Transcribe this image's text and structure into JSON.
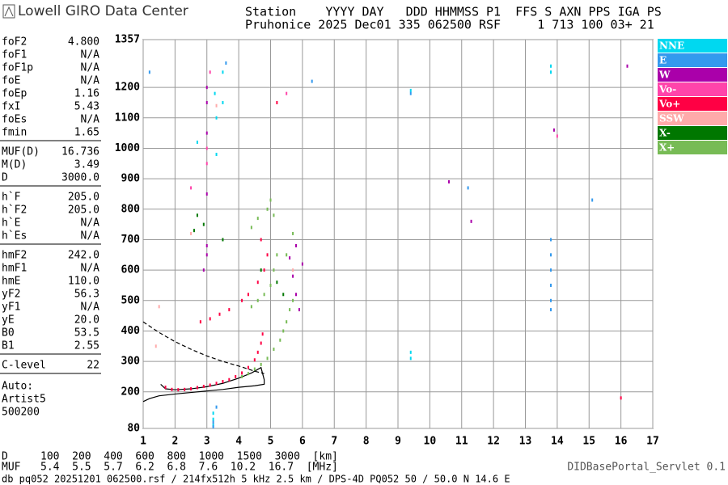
{
  "header": {
    "brand": "Lowell GIRO Data Center",
    "line1": "Station    YYYY DAY   DDD HHMMSS P1  FFS S AXN PPS IGA PS",
    "line2": "Pruhonice 2025 Dec01 335 062500 RSF     1 713 100 03+ 21"
  },
  "panel": [
    [
      [
        "foF2",
        "4.800"
      ],
      [
        "foF1",
        "N/A"
      ],
      [
        "foF1p",
        "N/A"
      ],
      [
        "foE",
        "N/A"
      ],
      [
        "foEp",
        "1.16"
      ],
      [
        "fxI",
        "5.43"
      ],
      [
        "foEs",
        "N/A"
      ],
      [
        "fmin",
        "1.65"
      ]
    ],
    [
      [
        "MUF(D)",
        "16.736"
      ],
      [
        "M(D)",
        "3.49"
      ],
      [
        "D",
        "3000.0"
      ]
    ],
    [
      [
        "h`F",
        "205.0"
      ],
      [
        "h`F2",
        "205.0"
      ],
      [
        "h`E",
        "N/A"
      ],
      [
        "h`Es",
        "N/A"
      ]
    ],
    [
      [
        "hmF2",
        "242.0"
      ],
      [
        "hmF1",
        "N/A"
      ],
      [
        "hmE",
        "110.0"
      ],
      [
        "yF2",
        "56.3"
      ],
      [
        "yF1",
        "N/A"
      ],
      [
        "yE",
        "20.0"
      ],
      [
        "B0",
        "53.5"
      ],
      [
        "B1",
        "2.55"
      ]
    ],
    [
      [
        "C-level",
        "22"
      ]
    ]
  ],
  "auto": [
    "Auto:",
    "Artist5",
    "500200"
  ],
  "footer": {
    "d_label": "D",
    "d_values": "100  200  400  600  800  1000  1500  3000  [km]",
    "muf_label": "MUF",
    "muf_values": "5.4  5.5  5.7  6.2  6.8  7.6  10.2  16.7  [MHz]",
    "source": "db pq052 20251201 062500.rsf / 214fx512h 5 kHz 2.5 km / DPS-4D PQ052 50 / 50.0 N 14.6 E",
    "servlet": "DIDBasePortal_Servlet 0.1"
  },
  "chart_data": {
    "type": "scatter",
    "xlim": [
      1,
      17
    ],
    "xticks": [
      1,
      2,
      3,
      4,
      5,
      6,
      7,
      8,
      9,
      10,
      11,
      12,
      13,
      14,
      15,
      16,
      17
    ],
    "ylim": [
      80,
      1357
    ],
    "yticks": [
      80,
      200,
      300,
      400,
      500,
      600,
      700,
      800,
      900,
      1000,
      1100,
      1200,
      1357
    ],
    "grid": true,
    "legend": "right",
    "series": [
      {
        "name": "NNE",
        "color": "#00d8f0",
        "x": [
          3.25,
          3.3,
          3.3,
          3.5,
          3.5,
          3.2,
          3.2,
          3.2,
          13.8,
          13.8,
          9.4,
          9.4,
          9.4,
          2.7
        ],
        "y": [
          1180,
          1100,
          980,
          1250,
          1150,
          90,
          110,
          130,
          1270,
          1250,
          1190,
          330,
          310,
          1020
        ]
      },
      {
        "name": "E",
        "color": "#3399ee",
        "x": [
          3.2,
          3.2,
          3.3,
          13.8,
          13.8,
          13.8,
          13.8,
          13.8,
          13.8,
          15.1,
          6.3,
          3.6,
          1.2,
          9.4,
          11.2
        ],
        "y": [
          85,
          100,
          150,
          700,
          650,
          600,
          550,
          500,
          470,
          830,
          1220,
          1280,
          1250,
          1180,
          870
        ]
      },
      {
        "name": "W",
        "color": "#aa00aa",
        "x": [
          3,
          3,
          3,
          3,
          3,
          3,
          2.9,
          10.6,
          11.3,
          13.9,
          16.2,
          5.6,
          5.7,
          5.8,
          5.9,
          6,
          5.8
        ],
        "y": [
          1200,
          1150,
          1050,
          850,
          680,
          650,
          600,
          890,
          760,
          1060,
          1270,
          640,
          580,
          520,
          470,
          620,
          680
        ]
      },
      {
        "name": "Vo-",
        "color": "#ff44aa",
        "x": [
          3,
          3,
          5.5,
          3.1,
          14,
          2.5
        ],
        "y": [
          1000,
          950,
          1180,
          1250,
          1040,
          870
        ]
      },
      {
        "name": "Vo+",
        "color": "#ff0044",
        "x": [
          1.7,
          1.9,
          2.1,
          2.3,
          2.5,
          2.7,
          2.9,
          3.1,
          3.3,
          3.5,
          3.7,
          3.9,
          4.1,
          4.3,
          4.5,
          4.6,
          4.7,
          4.75,
          2.8,
          3.1,
          3.4,
          3.7,
          4.1,
          4.3,
          4.6,
          4.8,
          4.9,
          4.7,
          16,
          5.2
        ],
        "y": [
          215,
          208,
          207,
          208,
          210,
          214,
          218,
          222,
          228,
          234,
          240,
          250,
          262,
          280,
          305,
          330,
          360,
          390,
          430,
          440,
          455,
          470,
          500,
          520,
          560,
          600,
          650,
          700,
          180,
          1150
        ]
      },
      {
        "name": "SSW",
        "color": "#ffaaaa",
        "x": [
          1.5,
          1.4,
          2.5,
          3.3,
          5.7
        ],
        "y": [
          480,
          350,
          720,
          1140,
          600
        ]
      },
      {
        "name": "X-",
        "color": "#007700",
        "x": [
          2.7,
          2.9,
          3.5,
          4.7,
          5.2,
          5.4,
          2.6
        ],
        "y": [
          780,
          750,
          700,
          600,
          560,
          520,
          730
        ]
      },
      {
        "name": "X+",
        "color": "#77bb55",
        "x": [
          4.1,
          4.3,
          4.5,
          4.7,
          4.9,
          5.1,
          5.3,
          5.4,
          5.5,
          5.6,
          5.7,
          4.4,
          4.6,
          4.8,
          5,
          5.1,
          5.2,
          4.4,
          4.6,
          4.9,
          5,
          5.1,
          5.5,
          5.7
        ],
        "y": [
          250,
          260,
          275,
          290,
          310,
          340,
          370,
          400,
          430,
          470,
          500,
          480,
          500,
          520,
          550,
          600,
          650,
          740,
          770,
          800,
          830,
          780,
          650,
          720
        ]
      }
    ],
    "profile": {
      "x": [
        1,
        1.2,
        1.5,
        2,
        2.5,
        3,
        3.5,
        4,
        4.5,
        4.8,
        4.8,
        4.7,
        4.4,
        4,
        3.5,
        3,
        2.5,
        2,
        1.7,
        1.55
      ],
      "y": [
        168,
        178,
        187,
        193,
        198,
        203,
        208,
        215,
        220,
        225,
        240,
        280,
        262,
        245,
        228,
        217,
        210,
        207,
        210,
        225
      ]
    },
    "profile_dashed": {
      "x": [
        1,
        1.5,
        2,
        2.5,
        3,
        3.5,
        4,
        4.5,
        4.8
      ],
      "y": [
        430,
        395,
        365,
        340,
        318,
        300,
        285,
        268,
        260
      ]
    }
  }
}
